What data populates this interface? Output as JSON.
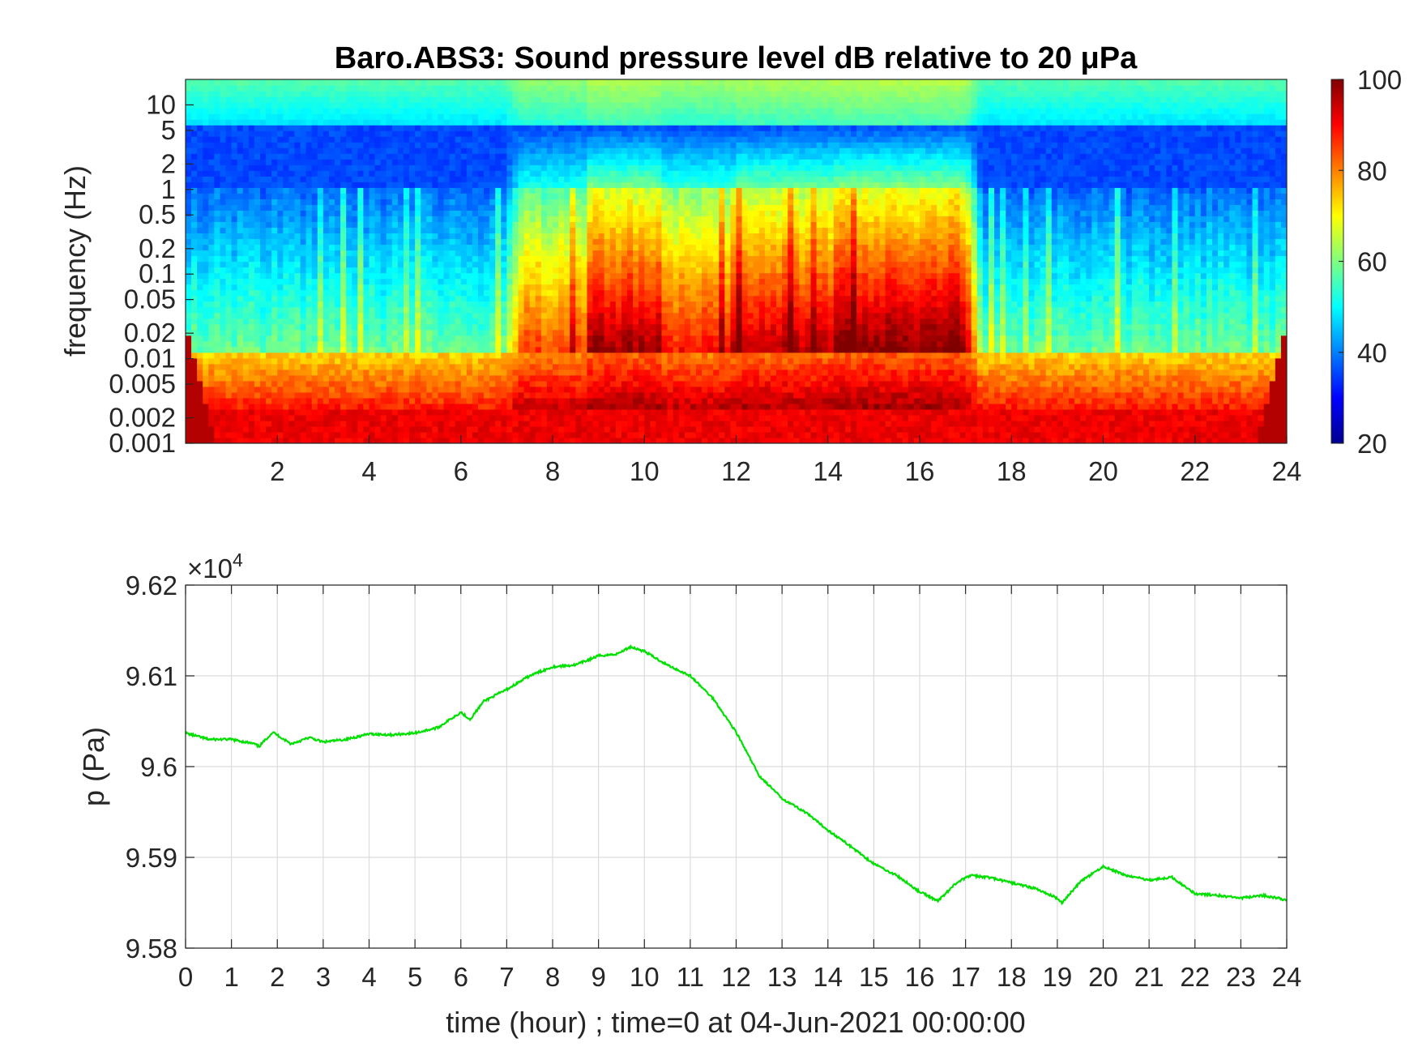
{
  "chart_data": [
    {
      "type": "heatmap",
      "title": "Baro.ABS3: Sound pressure level dB relative to 20 μPa",
      "ylabel": "frequency (Hz)",
      "xlabel": "",
      "xlim": [
        0,
        24
      ],
      "x_ticks": [
        2,
        4,
        6,
        8,
        10,
        12,
        14,
        16,
        18,
        20,
        22,
        24
      ],
      "y_scale": "log",
      "ylim": [
        0.001,
        20
      ],
      "y_ticks": [
        0.001,
        0.002,
        0.005,
        0.01,
        0.02,
        0.05,
        0.1,
        0.2,
        0.5,
        1,
        2,
        5,
        10
      ],
      "y_tick_labels": [
        "0.001",
        "0.002",
        "0.005",
        "0.01",
        "0.02",
        "0.05",
        "0.1",
        "0.2",
        "0.5",
        "1",
        "2",
        "5",
        "10"
      ],
      "colorbar": {
        "range": [
          20,
          100
        ],
        "ticks": [
          20,
          40,
          60,
          80,
          100
        ],
        "colormap": "jet"
      },
      "active_periods": [
        {
          "start": 7.3,
          "end": 8.8,
          "level": 0.6
        },
        {
          "start": 8.8,
          "end": 10.3,
          "level": 0.9
        },
        {
          "start": 10.3,
          "end": 12.0,
          "level": 0.7
        },
        {
          "start": 12.0,
          "end": 14.2,
          "level": 0.85
        },
        {
          "start": 14.2,
          "end": 17.0,
          "level": 0.95
        }
      ]
    },
    {
      "type": "line",
      "xlabel": "time (hour) ; time=0 at 04-Jun-2021 00:00:00",
      "ylabel": "p (Pa)",
      "xlim": [
        0,
        24
      ],
      "ylim": [
        95800,
        96200
      ],
      "x_ticks": [
        0,
        1,
        2,
        3,
        4,
        5,
        6,
        7,
        8,
        9,
        10,
        11,
        12,
        13,
        14,
        15,
        16,
        17,
        18,
        19,
        20,
        21,
        22,
        23,
        24
      ],
      "y_ticks": [
        9.58,
        9.59,
        9.6,
        9.61,
        9.62
      ],
      "y_tick_labels": [
        "9.58",
        "9.59",
        "9.6",
        "9.61",
        "9.62"
      ],
      "y_exponent": "×10",
      "y_exponent_power": "4",
      "grid": true,
      "series": [
        {
          "color": "#00e000",
          "x": [
            0,
            0.5,
            1,
            1.5,
            1.6,
            1.9,
            2.3,
            2.7,
            3,
            3.5,
            4,
            4.5,
            5,
            5.5,
            6,
            6.2,
            6.5,
            7,
            7.5,
            8,
            8.5,
            9,
            9.4,
            9.7,
            10,
            10.5,
            11,
            11.5,
            12,
            12.5,
            13,
            13.5,
            14,
            14.5,
            15,
            15.5,
            16,
            16.4,
            16.8,
            17.1,
            17.5,
            18,
            18.5,
            19,
            19.1,
            19.5,
            20,
            20.5,
            21,
            21.5,
            22,
            22.5,
            23,
            23.5,
            24
          ],
          "y": [
            96037,
            96030,
            96030,
            96025,
            96022,
            96038,
            96025,
            96032,
            96027,
            96030,
            96036,
            96035,
            96037,
            96043,
            96060,
            96052,
            96072,
            96085,
            96100,
            96110,
            96112,
            96122,
            96124,
            96132,
            96127,
            96112,
            96100,
            96075,
            96038,
            95990,
            95965,
            95950,
            95930,
            95912,
            95893,
            95880,
            95862,
            95852,
            95872,
            95880,
            95878,
            95872,
            95866,
            95855,
            95850,
            95873,
            95890,
            95880,
            95875,
            95878,
            95860,
            95858,
            95855,
            95858,
            95853
          ]
        }
      ]
    }
  ]
}
